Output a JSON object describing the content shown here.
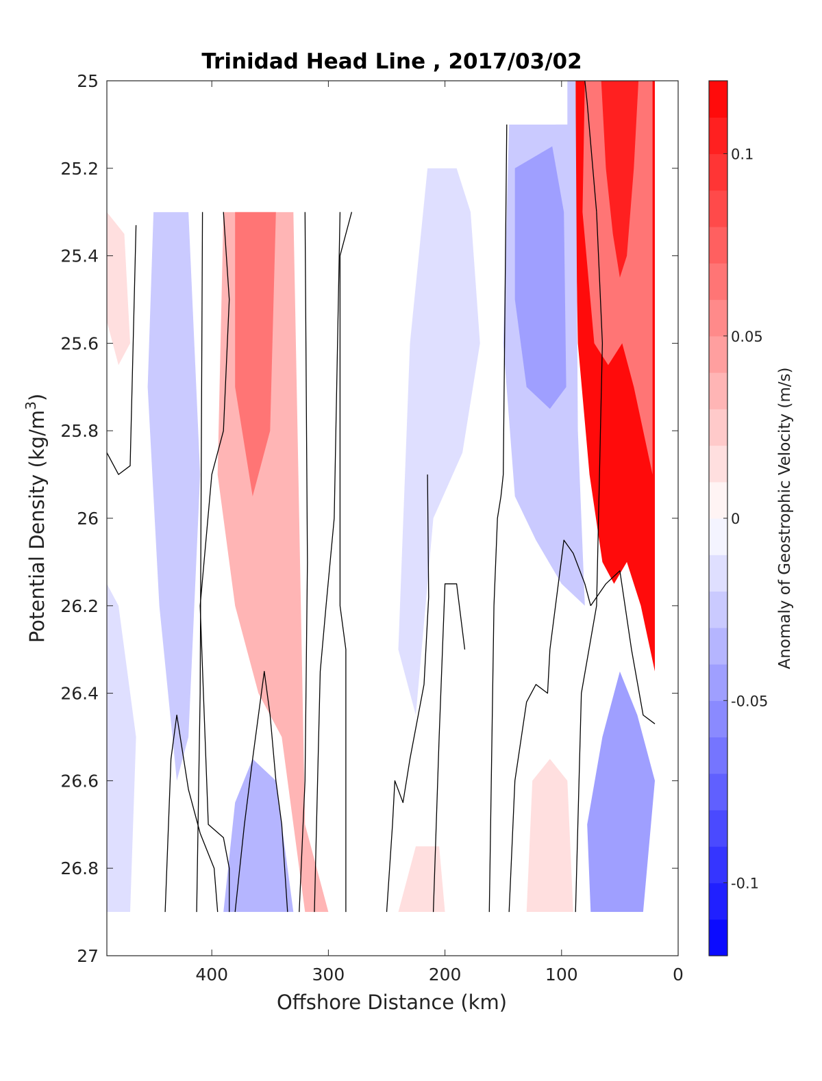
{
  "chart_data": {
    "type": "heatmap",
    "title": "Trinidad Head Line , 2017/03/02",
    "xlabel": "Offshore Distance (km)",
    "ylabel": "Potential Density (kg/m^3)",
    "ylabel_parts": {
      "main": "Potential Density (kg/m",
      "superscript": "3",
      "close": ")"
    },
    "xlim": [
      490,
      0
    ],
    "ylim": [
      25,
      27
    ],
    "x_reversed": true,
    "y_reversed": true,
    "x_ticks": [
      400,
      300,
      200,
      100,
      0
    ],
    "x_tick_labels": [
      "400",
      "300",
      "200",
      "100",
      "0"
    ],
    "y_ticks": [
      25,
      25.2,
      25.4,
      25.6,
      25.8,
      26,
      26.2,
      26.4,
      26.6,
      26.8,
      27
    ],
    "y_tick_labels": [
      "25",
      "25.2",
      "25.4",
      "25.6",
      "25.8",
      "26",
      "26.2",
      "26.4",
      "26.6",
      "26.8",
      "27"
    ],
    "grid": false,
    "colorbar": {
      "label": "Anomaly of Geostrophic Velocity (m/s)",
      "range": [
        -0.12,
        0.12
      ],
      "levels": 24,
      "ticks": [
        0.1,
        0.05,
        0,
        -0.05,
        -0.1
      ],
      "tick_labels": [
        "0.1",
        "0.05",
        "0",
        "-0.05",
        "-0.1"
      ],
      "colors": [
        "#0000ff",
        "#ffffff",
        "#ff0000"
      ],
      "colormap": "blue-white-red diverging"
    },
    "regions": [
      {
        "label": "strong positive core near coast",
        "value": 0.115,
        "polygon": [
          [
            88,
            25
          ],
          [
            20,
            25
          ],
          [
            20,
            26.35
          ],
          [
            32,
            26.2
          ],
          [
            44,
            26.1
          ],
          [
            55,
            26.15
          ],
          [
            65,
            26.1
          ],
          [
            76,
            25.9
          ],
          [
            86,
            25.6
          ],
          [
            88,
            25.3
          ]
        ]
      },
      {
        "label": "coastal positive band",
        "value": 0.06,
        "polygon": [
          [
            80,
            25
          ],
          [
            22,
            25
          ],
          [
            22,
            25.9
          ],
          [
            38,
            25.7
          ],
          [
            48,
            25.6
          ],
          [
            60,
            25.65
          ],
          [
            72,
            25.6
          ],
          [
            82,
            25.3
          ]
        ]
      },
      {
        "label": "coastal core",
        "value": 0.1,
        "polygon": [
          [
            66,
            25
          ],
          [
            34,
            25
          ],
          [
            38,
            25.2
          ],
          [
            44,
            25.4
          ],
          [
            50,
            25.45
          ],
          [
            56,
            25.35
          ],
          [
            62,
            25.2
          ]
        ]
      },
      {
        "label": "negative band near 120 km",
        "value": -0.025,
        "polygon": [
          [
            145,
            25.1
          ],
          [
            105,
            25.1
          ],
          [
            100,
            25
          ],
          [
            88,
            25
          ],
          [
            86,
            25.8
          ],
          [
            80,
            26.2
          ],
          [
            100,
            26.15
          ],
          [
            122,
            26.05
          ],
          [
            140,
            25.95
          ],
          [
            150,
            25.6
          ]
        ]
      },
      {
        "label": "negative core near 120 km",
        "value": -0.045,
        "polygon": [
          [
            140,
            25.2
          ],
          [
            108,
            25.15
          ],
          [
            98,
            25.3
          ],
          [
            96,
            25.7
          ],
          [
            110,
            25.75
          ],
          [
            130,
            25.7
          ],
          [
            140,
            25.5
          ]
        ]
      },
      {
        "label": "negative band near 200 km",
        "value": -0.015,
        "polygon": [
          [
            230,
            25.6
          ],
          [
            215,
            25.2
          ],
          [
            190,
            25.2
          ],
          [
            178,
            25.3
          ],
          [
            170,
            25.6
          ],
          [
            185,
            25.85
          ],
          [
            210,
            26.0
          ],
          [
            225,
            26.45
          ],
          [
            240,
            26.3
          ]
        ]
      },
      {
        "label": "positive band near 360 km",
        "value": 0.035,
        "polygon": [
          [
            390,
            25.3
          ],
          [
            330,
            25.3
          ],
          [
            320,
            26.7
          ],
          [
            300,
            26.9
          ],
          [
            320,
            26.9
          ],
          [
            340,
            26.5
          ],
          [
            360,
            26.4
          ],
          [
            380,
            26.2
          ],
          [
            395,
            25.9
          ]
        ]
      },
      {
        "label": "positive core near 360 km",
        "value": 0.06,
        "polygon": [
          [
            380,
            25.3
          ],
          [
            375,
            25.2
          ],
          [
            360,
            25.2
          ],
          [
            345,
            25.3
          ],
          [
            350,
            25.8
          ],
          [
            365,
            25.95
          ],
          [
            380,
            25.7
          ]
        ]
      },
      {
        "label": "negative band near 430 km",
        "value": -0.025,
        "polygon": [
          [
            450,
            25.3
          ],
          [
            420,
            25.3
          ],
          [
            410,
            25.9
          ],
          [
            420,
            26.5
          ],
          [
            430,
            26.6
          ],
          [
            445,
            26.2
          ],
          [
            455,
            25.7
          ]
        ]
      },
      {
        "label": "negative lens near 360 km at depth",
        "value": -0.035,
        "polygon": [
          [
            390,
            26.9
          ],
          [
            330,
            26.9
          ],
          [
            345,
            26.6
          ],
          [
            365,
            26.55
          ],
          [
            380,
            26.65
          ]
        ]
      },
      {
        "label": "negative band near coast at depth",
        "value": -0.045,
        "polygon": [
          [
            75,
            26.9
          ],
          [
            30,
            26.9
          ],
          [
            20,
            26.6
          ],
          [
            35,
            26.45
          ],
          [
            50,
            26.35
          ],
          [
            65,
            26.5
          ],
          [
            78,
            26.7
          ]
        ]
      },
      {
        "label": "positive lens near 110 km at depth",
        "value": 0.015,
        "polygon": [
          [
            130,
            26.9
          ],
          [
            90,
            26.9
          ],
          [
            95,
            26.6
          ],
          [
            110,
            26.55
          ],
          [
            125,
            26.6
          ]
        ]
      },
      {
        "label": "positive lens near 210 km at depth",
        "value": 0.012,
        "polygon": [
          [
            240,
            26.9
          ],
          [
            200,
            26.9
          ],
          [
            205,
            26.75
          ],
          [
            225,
            26.75
          ]
        ]
      },
      {
        "label": "offshore positive patch",
        "value": 0.015,
        "polygon": [
          [
            490,
            25.3
          ],
          [
            475,
            25.35
          ],
          [
            470,
            25.6
          ],
          [
            480,
            25.65
          ],
          [
            490,
            25.55
          ]
        ]
      },
      {
        "label": "offshore negative patch",
        "value": -0.012,
        "polygon": [
          [
            490,
            26.15
          ],
          [
            480,
            26.2
          ],
          [
            465,
            26.5
          ],
          [
            470,
            26.9
          ],
          [
            490,
            26.9
          ]
        ]
      }
    ],
    "contour_lines": [
      [
        [
          490,
          25.85
        ],
        [
          480,
          25.9
        ],
        [
          470,
          25.88
        ],
        [
          465,
          25.33
        ]
      ],
      [
        [
          440,
          26.9
        ],
        [
          435,
          26.55
        ],
        [
          430,
          26.45
        ],
        [
          420,
          26.62
        ],
        [
          410,
          26.72
        ],
        [
          398,
          26.8
        ],
        [
          395,
          26.9
        ]
      ],
      [
        [
          413,
          26.9
        ],
        [
          410,
          26.4
        ],
        [
          408,
          25.3
        ]
      ],
      [
        [
          390,
          25.3
        ],
        [
          385,
          25.5
        ],
        [
          390,
          25.8
        ],
        [
          400,
          25.9
        ],
        [
          410,
          26.2
        ],
        [
          403,
          26.7
        ],
        [
          390,
          26.73
        ],
        [
          385,
          26.8
        ],
        [
          385,
          26.9
        ]
      ],
      [
        [
          380,
          26.9
        ],
        [
          372,
          26.7
        ],
        [
          365,
          26.55
        ],
        [
          355,
          26.35
        ],
        [
          350,
          26.45
        ],
        [
          345,
          26.6
        ],
        [
          340,
          26.7
        ],
        [
          335,
          26.9
        ]
      ],
      [
        [
          325,
          26.9
        ],
        [
          320,
          26.6
        ],
        [
          318,
          26.1
        ],
        [
          320,
          25.3
        ]
      ],
      [
        [
          312,
          26.9
        ],
        [
          307,
          26.35
        ],
        [
          302,
          26.2
        ],
        [
          295,
          26.0
        ],
        [
          290,
          25.3
        ]
      ],
      [
        [
          285,
          26.9
        ],
        [
          285,
          26.3
        ],
        [
          290,
          26.2
        ],
        [
          290,
          25.4
        ],
        [
          280,
          25.3
        ]
      ],
      [
        [
          250,
          26.9
        ],
        [
          245,
          26.7
        ],
        [
          243,
          26.6
        ],
        [
          236,
          26.65
        ],
        [
          230,
          26.55
        ],
        [
          218,
          26.38
        ],
        [
          214,
          26.18
        ],
        [
          215,
          25.9
        ]
      ],
      [
        [
          210,
          26.9
        ],
        [
          205,
          26.5
        ],
        [
          200,
          26.15
        ],
        [
          190,
          26.15
        ],
        [
          183,
          26.3
        ]
      ],
      [
        [
          162,
          26.9
        ],
        [
          158,
          26.2
        ],
        [
          155,
          26.0
        ],
        [
          152,
          25.95
        ],
        [
          150,
          25.9
        ],
        [
          147,
          25.1
        ]
      ],
      [
        [
          145,
          26.9
        ],
        [
          140,
          26.6
        ],
        [
          130,
          26.42
        ],
        [
          122,
          26.38
        ],
        [
          112,
          26.4
        ],
        [
          110,
          26.3
        ],
        [
          98,
          26.05
        ],
        [
          90,
          26.08
        ],
        [
          80,
          26.15
        ],
        [
          75,
          26.2
        ]
      ],
      [
        [
          88,
          26.9
        ],
        [
          83,
          26.4
        ],
        [
          70,
          26.2
        ],
        [
          65,
          25.6
        ],
        [
          70,
          25.3
        ]
      ],
      [
        [
          75,
          26.2
        ],
        [
          62,
          26.15
        ],
        [
          50,
          26.12
        ],
        [
          40,
          26.3
        ],
        [
          30,
          26.45
        ],
        [
          20,
          26.47
        ]
      ],
      [
        [
          70,
          25.3
        ],
        [
          78,
          25.05
        ],
        [
          80,
          25.0
        ]
      ]
    ],
    "no_data_regions": [
      {
        "label": "missing shallow data offshore",
        "polygon": [
          [
            490,
            25
          ],
          [
            490,
            25.3
          ],
          [
            250,
            25.3
          ],
          [
            250,
            25.2
          ],
          [
            180,
            25.2
          ],
          [
            180,
            25.1
          ],
          [
            95,
            25.1
          ],
          [
            95,
            25
          ],
          [
            490,
            25
          ]
        ]
      },
      {
        "label": "missing deep data",
        "polygon": [
          [
            490,
            26.9
          ],
          [
            490,
            27
          ],
          [
            0,
            27
          ],
          [
            0,
            26.9
          ]
        ]
      },
      {
        "label": "missing near-coast data",
        "polygon": [
          [
            20,
            25
          ],
          [
            0,
            25
          ],
          [
            0,
            27
          ],
          [
            20,
            27
          ]
        ]
      }
    ]
  }
}
